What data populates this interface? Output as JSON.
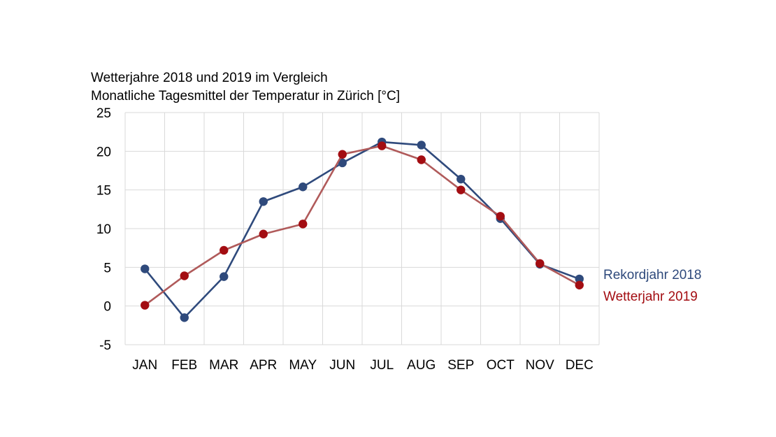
{
  "chart_data": {
    "type": "line",
    "title": "Wetterjahre 2018 und 2019 im Vergleich",
    "subtitle": "Monatliche Tagesmittel der Temperatur in Zürich [°C]",
    "categories": [
      "JAN",
      "FEB",
      "MAR",
      "APR",
      "MAY",
      "JUN",
      "JUL",
      "AUG",
      "SEP",
      "OCT",
      "NOV",
      "DEC"
    ],
    "ylim": [
      -5,
      25
    ],
    "yticks": [
      -5,
      0,
      5,
      10,
      15,
      20,
      25
    ],
    "grid": true,
    "legend_position": "right",
    "series": [
      {
        "name": "Rekordjahr 2018",
        "color": "#2f4a7c",
        "values": [
          4.8,
          -1.5,
          3.8,
          13.5,
          15.4,
          18.5,
          21.2,
          20.8,
          16.4,
          11.3,
          5.4,
          3.5
        ]
      },
      {
        "name": "Wetterjahr 2019",
        "color": "#a30d12",
        "line_color": "#b05a5a",
        "values": [
          0.1,
          3.9,
          7.2,
          9.3,
          10.6,
          19.6,
          20.7,
          18.9,
          15.0,
          11.6,
          5.5,
          2.7
        ]
      }
    ]
  }
}
